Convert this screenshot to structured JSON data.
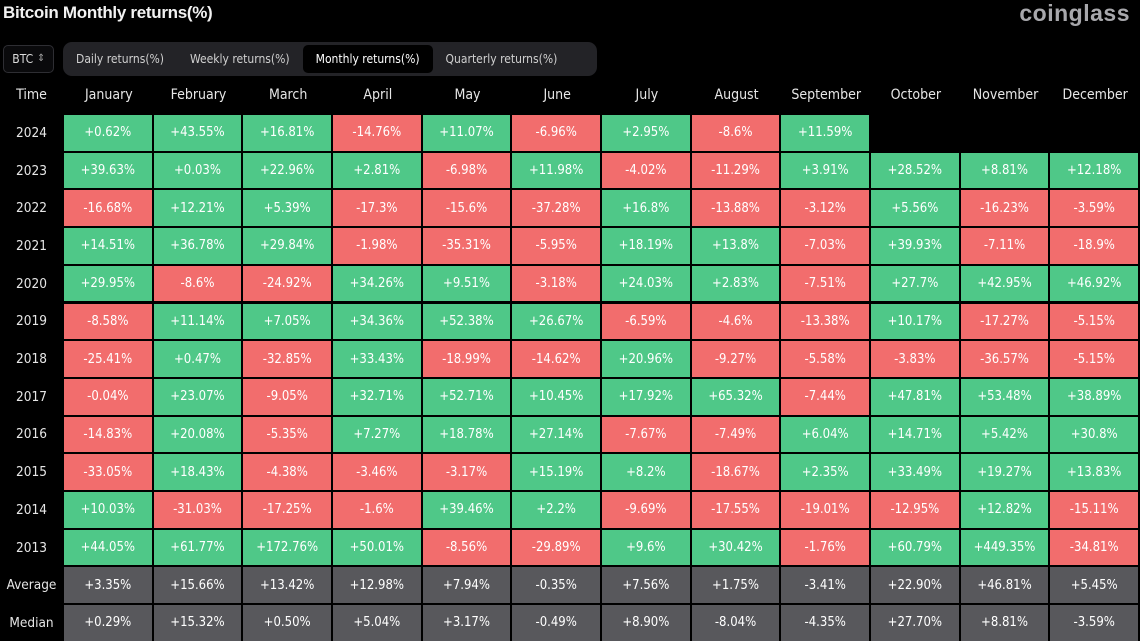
{
  "title": "Bitcoin Monthly returns(%)",
  "logo": "coinglass",
  "selector": {
    "value": "BTC",
    "icon": "chevron-updown-icon"
  },
  "tabs": [
    {
      "label": "Daily returns(%)",
      "active": false
    },
    {
      "label": "Weekly returns(%)",
      "active": false
    },
    {
      "label": "Monthly returns(%)",
      "active": true
    },
    {
      "label": "Quarterly returns(%)",
      "active": false
    }
  ],
  "colors": {
    "positive": "#4fc888",
    "negative": "#f26d6d",
    "summary": "#58585c",
    "background": "#000000"
  },
  "chart_data": {
    "type": "heatmap",
    "row_header": "Time",
    "columns": [
      "January",
      "February",
      "March",
      "April",
      "May",
      "June",
      "July",
      "August",
      "September",
      "October",
      "November",
      "December"
    ],
    "rows": [
      {
        "label": "2024",
        "values": [
          "+0.62%",
          "+43.55%",
          "+16.81%",
          "-14.76%",
          "+11.07%",
          "-6.96%",
          "+2.95%",
          "-8.6%",
          "+11.59%",
          null,
          null,
          null
        ]
      },
      {
        "label": "2023",
        "values": [
          "+39.63%",
          "+0.03%",
          "+22.96%",
          "+2.81%",
          "-6.98%",
          "+11.98%",
          "-4.02%",
          "-11.29%",
          "+3.91%",
          "+28.52%",
          "+8.81%",
          "+12.18%"
        ]
      },
      {
        "label": "2022",
        "values": [
          "-16.68%",
          "+12.21%",
          "+5.39%",
          "-17.3%",
          "-15.6%",
          "-37.28%",
          "+16.8%",
          "-13.88%",
          "-3.12%",
          "+5.56%",
          "-16.23%",
          "-3.59%"
        ]
      },
      {
        "label": "2021",
        "values": [
          "+14.51%",
          "+36.78%",
          "+29.84%",
          "-1.98%",
          "-35.31%",
          "-5.95%",
          "+18.19%",
          "+13.8%",
          "-7.03%",
          "+39.93%",
          "-7.11%",
          "-18.9%"
        ]
      },
      {
        "label": "2020",
        "values": [
          "+29.95%",
          "-8.6%",
          "-24.92%",
          "+34.26%",
          "+9.51%",
          "-3.18%",
          "+24.03%",
          "+2.83%",
          "-7.51%",
          "+27.7%",
          "+42.95%",
          "+46.92%"
        ]
      },
      {
        "label": "2019",
        "values": [
          "-8.58%",
          "+11.14%",
          "+7.05%",
          "+34.36%",
          "+52.38%",
          "+26.67%",
          "-6.59%",
          "-4.6%",
          "-13.38%",
          "+10.17%",
          "-17.27%",
          "-5.15%"
        ]
      },
      {
        "label": "2018",
        "values": [
          "-25.41%",
          "+0.47%",
          "-32.85%",
          "+33.43%",
          "-18.99%",
          "-14.62%",
          "+20.96%",
          "-9.27%",
          "-5.58%",
          "-3.83%",
          "-36.57%",
          "-5.15%"
        ]
      },
      {
        "label": "2017",
        "values": [
          "-0.04%",
          "+23.07%",
          "-9.05%",
          "+32.71%",
          "+52.71%",
          "+10.45%",
          "+17.92%",
          "+65.32%",
          "-7.44%",
          "+47.81%",
          "+53.48%",
          "+38.89%"
        ]
      },
      {
        "label": "2016",
        "values": [
          "-14.83%",
          "+20.08%",
          "-5.35%",
          "+7.27%",
          "+18.78%",
          "+27.14%",
          "-7.67%",
          "-7.49%",
          "+6.04%",
          "+14.71%",
          "+5.42%",
          "+30.8%"
        ]
      },
      {
        "label": "2015",
        "values": [
          "-33.05%",
          "+18.43%",
          "-4.38%",
          "-3.46%",
          "-3.17%",
          "+15.19%",
          "+8.2%",
          "-18.67%",
          "+2.35%",
          "+33.49%",
          "+19.27%",
          "+13.83%"
        ]
      },
      {
        "label": "2014",
        "values": [
          "+10.03%",
          "-31.03%",
          "-17.25%",
          "-1.6%",
          "+39.46%",
          "+2.2%",
          "-9.69%",
          "-17.55%",
          "-19.01%",
          "-12.95%",
          "+12.82%",
          "-15.11%"
        ]
      },
      {
        "label": "2013",
        "values": [
          "+44.05%",
          "+61.77%",
          "+172.76%",
          "+50.01%",
          "-8.56%",
          "-29.89%",
          "+9.6%",
          "+30.42%",
          "-1.76%",
          "+60.79%",
          "+449.35%",
          "-34.81%"
        ]
      }
    ],
    "summary_rows": [
      {
        "label": "Average",
        "values": [
          "+3.35%",
          "+15.66%",
          "+13.42%",
          "+12.98%",
          "+7.94%",
          "-0.35%",
          "+7.56%",
          "+1.75%",
          "-3.41%",
          "+22.90%",
          "+46.81%",
          "+5.45%"
        ]
      },
      {
        "label": "Median",
        "values": [
          "+0.29%",
          "+15.32%",
          "+0.50%",
          "+5.04%",
          "+3.17%",
          "-0.49%",
          "+8.90%",
          "-8.04%",
          "-4.35%",
          "+27.70%",
          "+8.81%",
          "-3.59%"
        ]
      }
    ]
  }
}
